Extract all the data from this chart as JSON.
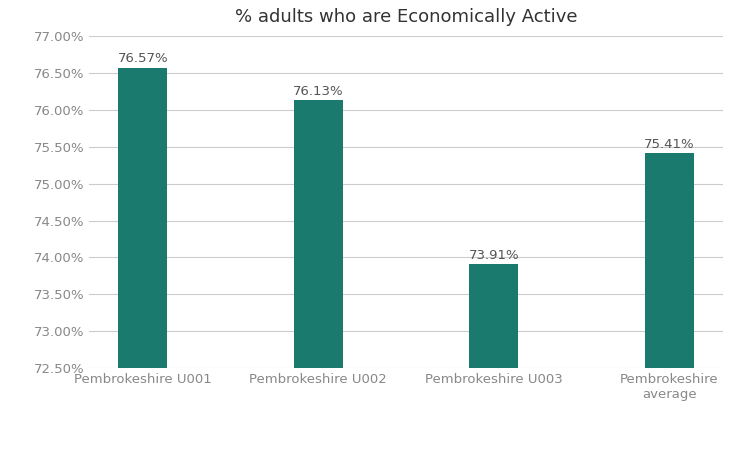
{
  "title": "% adults who are Economically Active",
  "categories": [
    "Pembrokeshire U001",
    "Pembrokeshire U002",
    "Pembrokeshire U003",
    "Pembrokeshire\naverage"
  ],
  "values": [
    76.57,
    76.13,
    73.91,
    75.41
  ],
  "bar_color": "#1a7a6e",
  "ylim_min": 72.5,
  "ylim_max": 77.0,
  "ytick_step": 0.5,
  "bar_width": 0.28,
  "background_color": "#ffffff",
  "grid_color": "#cccccc",
  "title_fontsize": 13,
  "tick_fontsize": 9.5,
  "label_fontsize": 9.5,
  "label_color": "#555555",
  "tick_color": "#888888"
}
